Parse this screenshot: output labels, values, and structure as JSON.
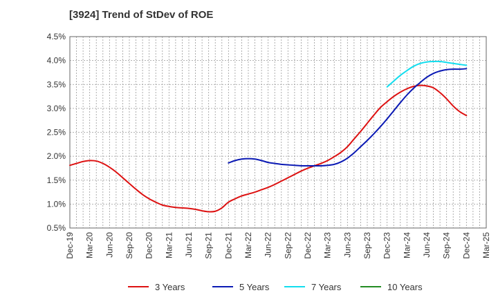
{
  "chart_data": {
    "type": "line",
    "title": "[3924]  Trend of StDev of ROE",
    "xlabel": "",
    "ylabel": "",
    "ylim": [
      0.5,
      4.5
    ],
    "y_ticks": [
      "4.5%",
      "4.0%",
      "3.5%",
      "3.0%",
      "2.5%",
      "2.0%",
      "1.5%",
      "1.0%",
      "0.5%"
    ],
    "y_tick_values": [
      4.5,
      4.0,
      3.5,
      3.0,
      2.5,
      2.0,
      1.5,
      1.0,
      0.5
    ],
    "x_ticks": [
      "Dec-19",
      "Mar-20",
      "Jun-20",
      "Sep-20",
      "Dec-20",
      "Mar-21",
      "Jun-21",
      "Sep-21",
      "Dec-21",
      "Mar-22",
      "Jun-22",
      "Sep-22",
      "Dec-22",
      "Mar-23",
      "Jun-23",
      "Sep-23",
      "Dec-23",
      "Mar-24",
      "Jun-24",
      "Sep-24",
      "Dec-24",
      "Mar-25"
    ],
    "grid": true,
    "legend_position": "bottom",
    "series": [
      {
        "name": "3 Years",
        "color": "#dd1111",
        "x": [
          "Dec-19",
          "Jan-20",
          "Feb-20",
          "Mar-20",
          "Apr-20",
          "May-20",
          "Jun-20",
          "Jul-20",
          "Aug-20",
          "Sep-20",
          "Oct-20",
          "Nov-20",
          "Dec-20",
          "Jan-21",
          "Feb-21",
          "Mar-21",
          "Apr-21",
          "May-21",
          "Jun-21",
          "Jul-21",
          "Aug-21",
          "Sep-21",
          "Oct-21",
          "Nov-21",
          "Dec-21",
          "Jan-22",
          "Feb-22",
          "Mar-22",
          "Apr-22",
          "May-22",
          "Jun-22",
          "Jul-22",
          "Aug-22",
          "Sep-22",
          "Oct-22",
          "Nov-22",
          "Dec-22",
          "Jan-23",
          "Feb-23",
          "Mar-23",
          "Apr-23",
          "May-23",
          "Jun-23",
          "Jul-23",
          "Aug-23",
          "Sep-23",
          "Oct-23",
          "Nov-23",
          "Dec-23",
          "Jan-24",
          "Feb-24",
          "Mar-24",
          "Apr-24",
          "May-24",
          "Jun-24",
          "Jul-24",
          "Aug-24",
          "Sep-24",
          "Oct-24",
          "Nov-24",
          "Dec-24"
        ],
        "values": [
          1.81,
          1.85,
          1.89,
          1.91,
          1.9,
          1.85,
          1.77,
          1.67,
          1.55,
          1.43,
          1.31,
          1.2,
          1.11,
          1.04,
          0.98,
          0.95,
          0.93,
          0.92,
          0.91,
          0.89,
          0.86,
          0.84,
          0.85,
          0.92,
          1.04,
          1.11,
          1.17,
          1.21,
          1.25,
          1.3,
          1.35,
          1.41,
          1.48,
          1.55,
          1.62,
          1.69,
          1.75,
          1.8,
          1.85,
          1.91,
          1.99,
          2.08,
          2.2,
          2.36,
          2.52,
          2.69,
          2.86,
          3.02,
          3.14,
          3.25,
          3.34,
          3.41,
          3.46,
          3.48,
          3.47,
          3.43,
          3.33,
          3.2,
          3.05,
          2.93,
          2.85
        ]
      },
      {
        "name": "5 Years",
        "color": "#0a19b4",
        "x": [
          "Dec-21",
          "Jan-22",
          "Feb-22",
          "Mar-22",
          "Apr-22",
          "May-22",
          "Jun-22",
          "Jul-22",
          "Aug-22",
          "Sep-22",
          "Oct-22",
          "Nov-22",
          "Dec-22",
          "Jan-23",
          "Feb-23",
          "Mar-23",
          "Apr-23",
          "May-23",
          "Jun-23",
          "Jul-23",
          "Aug-23",
          "Sep-23",
          "Oct-23",
          "Nov-23",
          "Dec-23",
          "Jan-24",
          "Feb-24",
          "Mar-24",
          "Apr-24",
          "May-24",
          "Jun-24",
          "Jul-24",
          "Aug-24",
          "Sep-24",
          "Oct-24",
          "Nov-24",
          "Dec-24"
        ],
        "values": [
          1.86,
          1.91,
          1.94,
          1.95,
          1.94,
          1.91,
          1.87,
          1.85,
          1.83,
          1.82,
          1.81,
          1.8,
          1.8,
          1.8,
          1.8,
          1.81,
          1.83,
          1.88,
          1.96,
          2.07,
          2.2,
          2.33,
          2.47,
          2.62,
          2.78,
          2.95,
          3.12,
          3.28,
          3.42,
          3.54,
          3.65,
          3.73,
          3.78,
          3.81,
          3.82,
          3.82,
          3.83
        ]
      },
      {
        "name": "7 Years",
        "color": "#11ddee",
        "x": [
          "Dec-23",
          "Jan-24",
          "Feb-24",
          "Mar-24",
          "Apr-24",
          "May-24",
          "Jun-24",
          "Jul-24",
          "Aug-24",
          "Sep-24",
          "Oct-24",
          "Nov-24",
          "Dec-24"
        ],
        "values": [
          3.45,
          3.57,
          3.69,
          3.79,
          3.88,
          3.94,
          3.97,
          3.98,
          3.98,
          3.96,
          3.94,
          3.92,
          3.9
        ]
      },
      {
        "name": "10 Years",
        "color": "#228b22",
        "x": [],
        "values": []
      }
    ]
  }
}
